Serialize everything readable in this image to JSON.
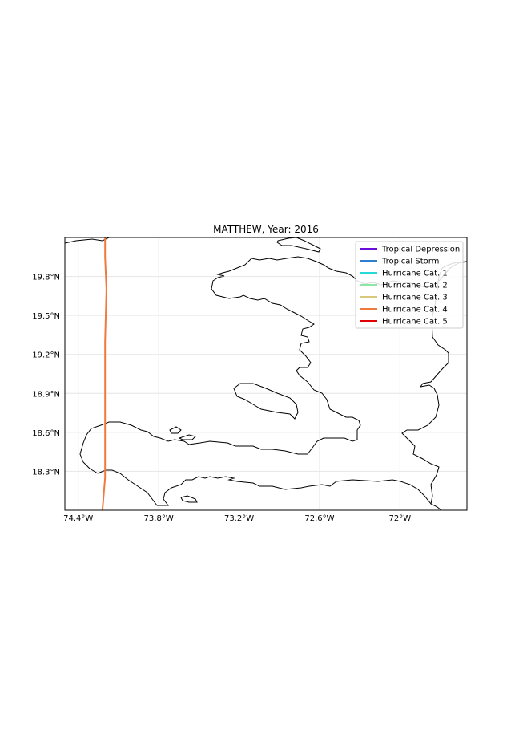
{
  "map": {
    "title": "MATTHEW, Year: 2016",
    "extent": {
      "lon": [
        -74.5,
        -71.5
      ],
      "lat": [
        18.0,
        20.1
      ]
    },
    "grid": true,
    "x_ticks": [
      {
        "value": -74.4,
        "label": "74.4°W"
      },
      {
        "value": -73.8,
        "label": "73.8°W"
      },
      {
        "value": -73.2,
        "label": "73.2°W"
      },
      {
        "value": -72.6,
        "label": "72.6°W"
      },
      {
        "value": -72.0,
        "label": "72°W"
      }
    ],
    "y_ticks": [
      {
        "value": 19.8,
        "label": "19.8°N"
      },
      {
        "value": 19.5,
        "label": "19.5°N"
      },
      {
        "value": 19.2,
        "label": "19.2°N"
      },
      {
        "value": 18.9,
        "label": "18.9°N"
      },
      {
        "value": 18.6,
        "label": "18.6°N"
      },
      {
        "value": 18.3,
        "label": "18.3°N"
      }
    ],
    "legend": {
      "placement": "top-right",
      "entries": [
        {
          "label": "Tropical Depression",
          "color": "#6a0dd6"
        },
        {
          "label": "Tropical Storm",
          "color": "#2f7fd0"
        },
        {
          "label": "Hurricane Cat. 1",
          "color": "#27d8d8"
        },
        {
          "label": "Hurricane Cat. 2",
          "color": "#8ee6a6"
        },
        {
          "label": "Hurricane Cat. 3",
          "color": "#d9c77a"
        },
        {
          "label": "Hurricane Cat. 4",
          "color": "#f07a3c"
        },
        {
          "label": "Hurricane Cat. 5",
          "color": "#e00000"
        }
      ]
    },
    "track": {
      "category": "Hurricane Cat. 4",
      "color": "#f07a3c",
      "points": [
        [
          -74.2,
          20.1
        ],
        [
          -74.2,
          19.95
        ],
        [
          -74.19,
          19.7
        ],
        [
          -74.2,
          19.3
        ],
        [
          -74.2,
          18.9
        ],
        [
          -74.2,
          18.5
        ],
        [
          -74.2,
          18.25
        ],
        [
          -74.22,
          18.0
        ]
      ]
    }
  }
}
